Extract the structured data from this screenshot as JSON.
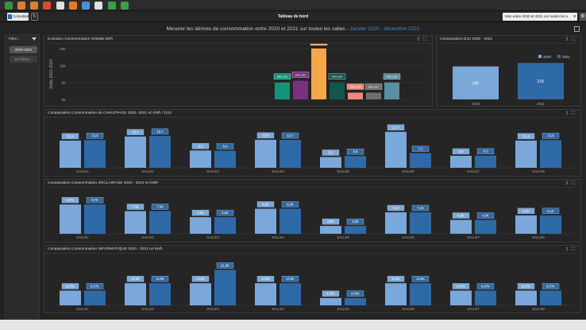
{
  "toolbar": {
    "icons": [
      {
        "name": "home-icon",
        "color": "#3a8f3a"
      },
      {
        "name": "chart-icon",
        "color": "#d9822b"
      },
      {
        "name": "table-icon",
        "color": "#d9822b"
      },
      {
        "name": "alert-icon",
        "color": "#d94a2b"
      },
      {
        "name": "document-icon",
        "color": "#e0e0e0"
      },
      {
        "name": "gauge-icon",
        "color": "#e07b2b"
      },
      {
        "name": "dashboard-icon",
        "color": "#4a90d9"
      },
      {
        "name": "copy-icon",
        "color": "#e0e0e0"
      },
      {
        "name": "export-icon",
        "color": "#3aa04a"
      },
      {
        "name": "settings-icon",
        "color": "#3aa04a"
      },
      {
        "name": "window-icon",
        "color": "#cccccc"
      }
    ]
  },
  "tabbar": {
    "tab_label": "Consultation",
    "title": "Tableau de bord",
    "period_select": "Mon entre 2020 et 2021 sur toutes les s"
  },
  "header": {
    "subtitle": "Mesurer les dérives de consommation entre 2020 et 2021 sur toutes les salles",
    "period": "Janvier 2020 - décembre 2021"
  },
  "filters": {
    "title": "Filtre...",
    "chip": "2020-2021",
    "secondary": "Set filtres..."
  },
  "colors": {
    "y2020": "#7aa8db",
    "y2021": "#2f6aa8"
  },
  "panels": {
    "global": {
      "title": "Evolution Consommation Globale kWh",
      "chart_data": {
        "type": "bar",
        "ylabel": "Delta 2021-2020",
        "yticks": [
          "15K",
          "10K",
          "5K",
          "0K"
        ],
        "ylim": [
          0,
          15000
        ],
        "categories": [
          "SALLE1",
          "SALLE2",
          "SALLE3",
          "SALLE4",
          "SALLE5",
          "SALLE7",
          "SALLE8"
        ],
        "values": [
          5000,
          5500,
          15000,
          5000,
          2000,
          2000,
          5000
        ],
        "bar_colors": [
          "#14937a",
          "#7b2f7f",
          "#f4a949",
          "#13574c",
          "#f0887d",
          "#6f6f6f",
          "#5a8fa0"
        ]
      }
    },
    "dju": {
      "title": "Comparaison DJU 2020 - 2021",
      "chart_data": {
        "type": "bar",
        "legend": [
          "2020",
          "2021"
        ],
        "categories": [
          "2020",
          "2021"
        ],
        "values": [
          19000,
          21000
        ],
        "labels": [
          "19K",
          "21K"
        ]
      }
    },
    "chauffage": {
      "title": "Comparaison Consommation de CHAUFFAGE 2020 -2021 en kWh / DJU",
      "chart_data": {
        "type": "bar",
        "categories": [
          "SALLE1",
          "SALLE2",
          "SALLE3",
          "SALLE4",
          "SALLE5",
          "SALLE6",
          "SALLE7",
          "SALLE8"
        ],
        "series": [
          {
            "name": "2020",
            "values": [
              13.4,
              15.4,
              8.5,
              13.8,
              5.3,
              17.7,
              5.9,
              13.4
            ],
            "labels": [
              "13,4",
              "15,4",
              "8,5",
              "13,8",
              "5,3",
              "17,7",
              "5,9",
              "13,4"
            ]
          },
          {
            "name": "2021",
            "values": [
              13.6,
              15.7,
              8.4,
              13.7,
              5.8,
              7.2,
              6.0,
              13.6
            ],
            "labels": [
              "13,6",
              "15,7",
              "8,4",
              "13,7",
              "5,8",
              "7,2",
              "6,0",
              "13,6"
            ]
          }
        ],
        "ylim": [
          0,
          18
        ]
      }
    },
    "eclairage": {
      "title": "Comparaison Consommation d'ECLAIRAGE 2020 - 2021 en kWh",
      "chart_data": {
        "type": "bar",
        "categories": [
          "SALLE1",
          "SALLE2",
          "SALLE3",
          "SALLE4",
          "SALLE5",
          "SALLE6",
          "SALLE7",
          "SALLE8"
        ],
        "series": [
          {
            "name": "2020",
            "values": [
              9.7,
              7.5,
              5.5,
              8.3,
              2.6,
              7.1,
              4.6,
              6.1
            ],
            "labels": [
              "9,7K",
              "7,5K",
              "5,5K",
              "8,3K",
              "2,6K",
              "7,1K",
              "4,6K",
              "6,1K"
            ]
          },
          {
            "name": "2021",
            "values": [
              9.7,
              7.5,
              5.5,
              8.3,
              2.6,
              7.1,
              4.6,
              6.1
            ],
            "labels": [
              "9,7K",
              "7,5K",
              "5,5K",
              "8,3K",
              "2,6K",
              "7,1K",
              "4,6K",
              "6,1K"
            ]
          }
        ],
        "ylim": [
          0,
          10
        ]
      }
    },
    "informatique": {
      "title": "Comparaison Consommation INFORMATIQUE 2020 - 2021 en kWh",
      "chart_data": {
        "type": "bar",
        "categories": [
          "SALLE1",
          "SALLE2",
          "SALLE3",
          "SALLE4",
          "SALLE5",
          "SALLE6",
          "SALLE7",
          "SALLE8"
        ],
        "series": [
          {
            "name": "2020",
            "values": [
              9.07,
              13.6,
              13.6,
              13.6,
              4.54,
              13.6,
              9.07,
              9.07
            ],
            "labels": [
              "9,07K",
              "13,6K",
              "13,6K",
              "13,6K",
              "4,54K",
              "13,6K",
              "9,07K",
              "9,07K"
            ]
          },
          {
            "name": "2021",
            "values": [
              9.07,
              13.6,
              21.8,
              13.6,
              4.54,
              13.6,
              9.07,
              9.07
            ],
            "labels": [
              "9,07K",
              "13,6K",
              "21,8K",
              "13,6K",
              "4,54K",
              "13,6K",
              "9,07K",
              "9,07K"
            ]
          }
        ],
        "ylim": [
          0,
          22
        ]
      }
    }
  }
}
